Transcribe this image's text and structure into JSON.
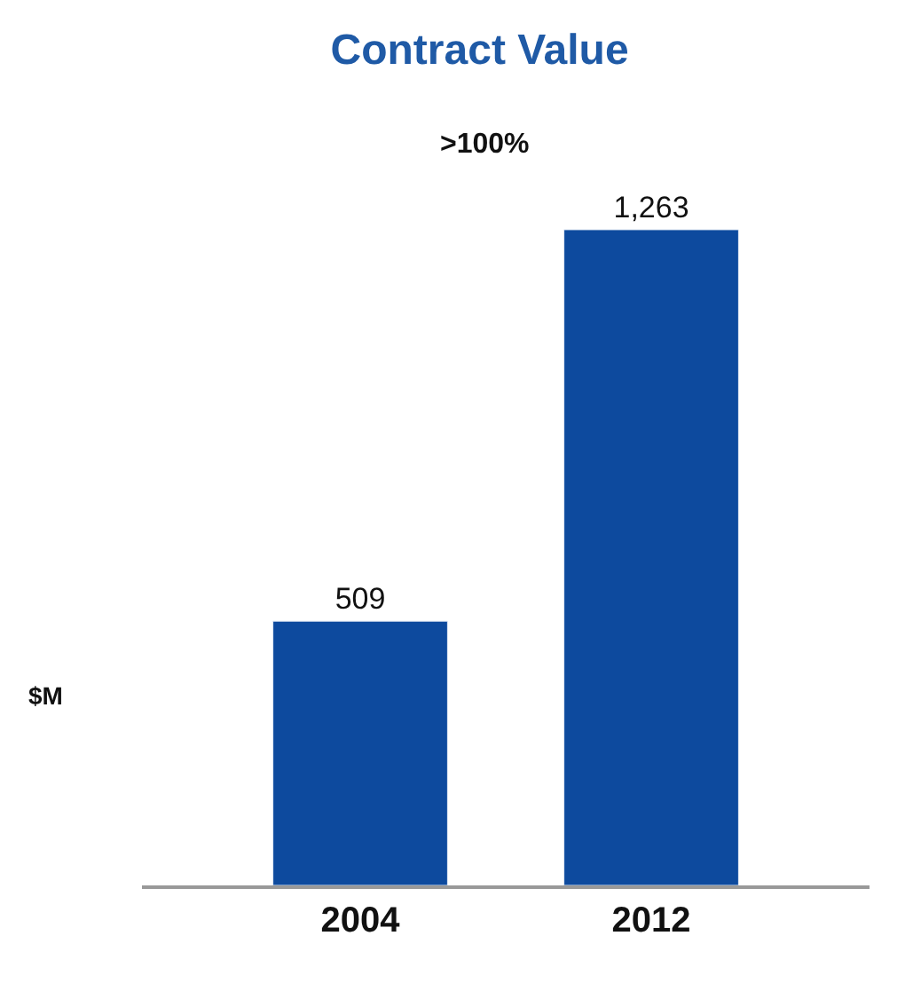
{
  "chart_data": {
    "type": "bar",
    "title": "Contract Value",
    "ylabel": "$M",
    "categories": [
      "2004",
      "2012"
    ],
    "values": [
      509,
      1263
    ],
    "value_labels": [
      "509",
      "1,263"
    ],
    "color": "#0d4a9e",
    "annotations": [
      ">100%"
    ]
  }
}
